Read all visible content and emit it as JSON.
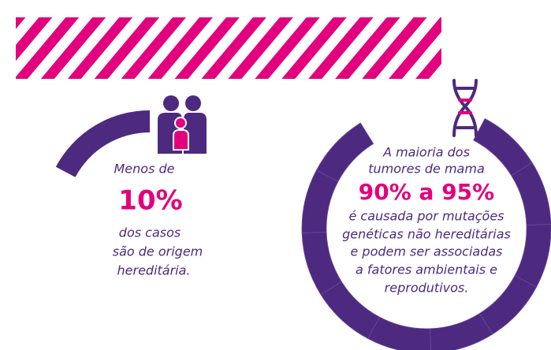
{
  "left": {
    "intro": "Menos de",
    "highlight": "10%",
    "lines": [
      "dos casos",
      "são de origem",
      "hereditária."
    ]
  },
  "right": {
    "intro": [
      "A maioria dos",
      "tumores de mama"
    ],
    "highlight": "90% a 95%",
    "lines": [
      "é causada por mutações",
      "genéticas não hereditárias",
      "e podem ser associadas",
      "a fatores ambientais e",
      "reprodutivos."
    ]
  }
}
